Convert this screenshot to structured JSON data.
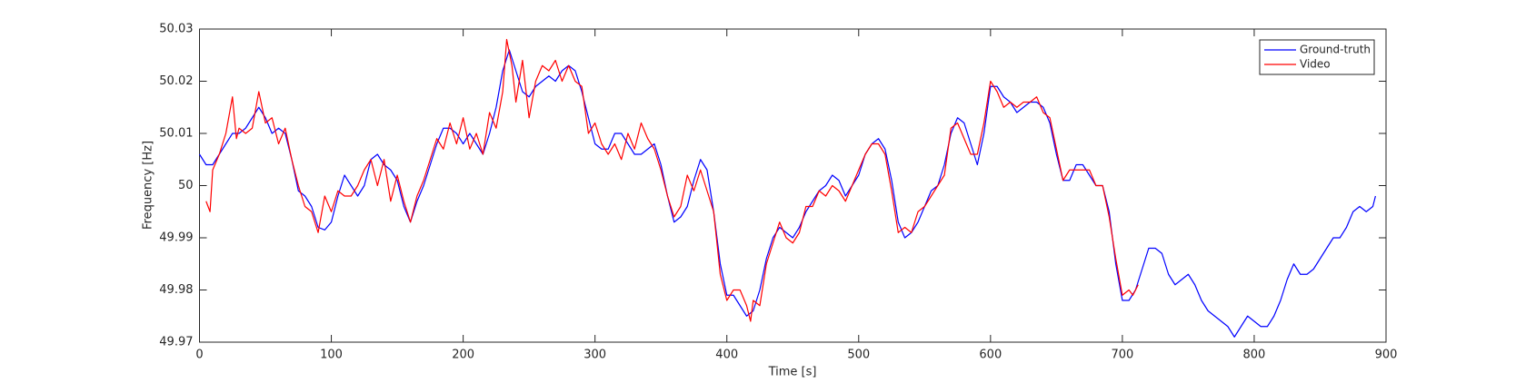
{
  "chart_data": {
    "type": "line",
    "x_label": "Time [s]",
    "y_label": "Frequency [Hz]",
    "xlim": [
      0,
      900
    ],
    "ylim": [
      49.97,
      50.03
    ],
    "xticks": [
      0,
      100,
      200,
      300,
      400,
      500,
      600,
      700,
      800,
      900
    ],
    "yticks": [
      49.97,
      49.98,
      49.99,
      50,
      50.01,
      50.02,
      50.03
    ],
    "legend": "upper right",
    "box": true,
    "series": [
      {
        "name": "Ground-truth",
        "color": "#0000ff",
        "x": [
          0,
          5,
          10,
          15,
          20,
          25,
          30,
          35,
          40,
          45,
          50,
          55,
          60,
          65,
          70,
          75,
          80,
          85,
          90,
          95,
          100,
          105,
          110,
          115,
          120,
          125,
          130,
          135,
          140,
          145,
          150,
          155,
          160,
          165,
          170,
          175,
          180,
          185,
          190,
          195,
          200,
          205,
          210,
          215,
          220,
          225,
          230,
          235,
          240,
          245,
          250,
          255,
          260,
          265,
          270,
          275,
          280,
          285,
          290,
          295,
          300,
          305,
          310,
          315,
          320,
          325,
          330,
          335,
          340,
          345,
          350,
          355,
          360,
          365,
          370,
          375,
          380,
          385,
          390,
          395,
          400,
          405,
          410,
          415,
          420,
          425,
          430,
          435,
          440,
          445,
          450,
          455,
          460,
          465,
          470,
          475,
          480,
          485,
          490,
          495,
          500,
          505,
          510,
          515,
          520,
          525,
          530,
          535,
          540,
          545,
          550,
          555,
          560,
          565,
          570,
          575,
          580,
          585,
          590,
          595,
          600,
          605,
          610,
          615,
          620,
          625,
          630,
          635,
          640,
          645,
          650,
          655,
          660,
          665,
          670,
          675,
          680,
          685,
          690,
          695,
          700,
          705,
          710,
          715,
          720,
          725,
          730,
          735,
          740,
          745,
          750,
          755,
          760,
          765,
          770,
          775,
          780,
          785,
          790,
          795,
          800,
          805,
          810,
          815,
          820,
          825,
          830,
          835,
          840,
          845,
          850,
          855,
          860,
          865,
          870,
          875,
          880,
          885,
          890,
          892
        ],
        "values": [
          50.006,
          50.004,
          50.004,
          50.006,
          50.008,
          50.01,
          50.01,
          50.011,
          50.013,
          50.015,
          50.013,
          50.01,
          50.011,
          50.01,
          50.005,
          49.999,
          49.998,
          49.996,
          49.992,
          49.9915,
          49.993,
          49.998,
          50.002,
          50.0,
          49.998,
          50.0,
          50.005,
          50.006,
          50.004,
          50.003,
          50.001,
          49.996,
          49.993,
          49.997,
          50.0,
          50.004,
          50.008,
          50.011,
          50.011,
          50.01,
          50.008,
          50.01,
          50.008,
          50.006,
          50.01,
          50.015,
          50.022,
          50.026,
          50.022,
          50.018,
          50.017,
          50.019,
          50.02,
          50.021,
          50.02,
          50.022,
          50.023,
          50.022,
          50.018,
          50.013,
          50.008,
          50.007,
          50.007,
          50.01,
          50.01,
          50.008,
          50.006,
          50.006,
          50.007,
          50.008,
          50.004,
          49.998,
          49.993,
          49.994,
          49.996,
          50.001,
          50.005,
          50.003,
          49.995,
          49.985,
          49.979,
          49.979,
          49.977,
          49.975,
          49.976,
          49.98,
          49.986,
          49.99,
          49.992,
          49.991,
          49.99,
          49.992,
          49.995,
          49.997,
          49.999,
          50.0,
          50.002,
          50.001,
          49.998,
          50.0,
          50.002,
          50.006,
          50.008,
          50.009,
          50.007,
          50.001,
          49.993,
          49.99,
          49.991,
          49.993,
          49.996,
          49.999,
          50.0,
          50.004,
          50.01,
          50.013,
          50.012,
          50.008,
          50.004,
          50.01,
          50.019,
          50.019,
          50.017,
          50.016,
          50.014,
          50.015,
          50.016,
          50.016,
          50.015,
          50.012,
          50.006,
          50.001,
          50.001,
          50.004,
          50.004,
          50.002,
          50.0,
          50.0,
          49.995,
          49.985,
          49.978,
          49.978,
          49.98,
          49.984,
          49.988,
          49.988,
          49.987,
          49.983,
          49.981,
          49.982,
          49.983,
          49.981,
          49.978,
          49.976,
          49.975,
          49.974,
          49.973,
          49.971,
          49.973,
          49.975,
          49.974,
          49.973,
          49.973,
          49.975,
          49.978,
          49.982,
          49.985,
          49.983,
          49.983,
          49.984,
          49.986,
          49.988,
          49.99,
          49.99,
          49.992,
          49.995,
          49.996,
          49.995,
          49.996,
          49.998
        ]
      },
      {
        "name": "Video",
        "color": "#ff0000",
        "x": [
          5,
          8,
          10,
          15,
          20,
          25,
          28,
          30,
          35,
          40,
          45,
          50,
          55,
          60,
          65,
          70,
          75,
          80,
          85,
          90,
          95,
          100,
          105,
          110,
          115,
          120,
          125,
          130,
          135,
          140,
          145,
          150,
          155,
          160,
          165,
          170,
          175,
          180,
          185,
          190,
          195,
          200,
          205,
          210,
          215,
          220,
          225,
          230,
          233,
          237,
          240,
          245,
          250,
          255,
          260,
          265,
          270,
          275,
          280,
          285,
          290,
          295,
          300,
          305,
          310,
          315,
          320,
          325,
          330,
          335,
          340,
          345,
          350,
          355,
          360,
          365,
          370,
          375,
          380,
          385,
          390,
          395,
          400,
          405,
          410,
          415,
          418,
          420,
          425,
          430,
          435,
          440,
          445,
          450,
          455,
          460,
          465,
          470,
          475,
          480,
          485,
          490,
          495,
          500,
          505,
          510,
          515,
          520,
          525,
          530,
          535,
          540,
          545,
          550,
          555,
          560,
          565,
          570,
          575,
          580,
          585,
          590,
          595,
          600,
          605,
          610,
          615,
          620,
          625,
          630,
          635,
          640,
          645,
          650,
          655,
          660,
          665,
          670,
          675,
          680,
          685,
          690,
          695,
          700,
          705,
          708,
          712
        ],
        "values": [
          49.997,
          49.995,
          50.003,
          50.006,
          50.01,
          50.017,
          50.009,
          50.011,
          50.01,
          50.011,
          50.018,
          50.012,
          50.013,
          50.008,
          50.011,
          50.005,
          50.0,
          49.996,
          49.995,
          49.991,
          49.998,
          49.995,
          49.999,
          49.998,
          49.998,
          50.0,
          50.003,
          50.005,
          50.0,
          50.005,
          49.997,
          50.002,
          49.997,
          49.993,
          49.998,
          50.001,
          50.005,
          50.009,
          50.007,
          50.012,
          50.008,
          50.013,
          50.007,
          50.01,
          50.006,
          50.014,
          50.011,
          50.018,
          50.028,
          50.023,
          50.016,
          50.024,
          50.013,
          50.02,
          50.023,
          50.022,
          50.024,
          50.02,
          50.023,
          50.02,
          50.019,
          50.01,
          50.012,
          50.008,
          50.006,
          50.008,
          50.005,
          50.01,
          50.007,
          50.012,
          50.009,
          50.007,
          50.003,
          49.998,
          49.994,
          49.996,
          50.002,
          49.999,
          50.003,
          49.999,
          49.995,
          49.983,
          49.978,
          49.98,
          49.98,
          49.977,
          49.974,
          49.978,
          49.977,
          49.985,
          49.989,
          49.993,
          49.99,
          49.989,
          49.991,
          49.996,
          49.996,
          49.999,
          49.998,
          50.0,
          49.999,
          49.997,
          50.0,
          50.003,
          50.006,
          50.008,
          50.008,
          50.006,
          49.999,
          49.991,
          49.992,
          49.991,
          49.995,
          49.996,
          49.998,
          50.0,
          50.002,
          50.011,
          50.012,
          50.009,
          50.006,
          50.006,
          50.012,
          50.02,
          50.018,
          50.015,
          50.016,
          50.015,
          50.016,
          50.016,
          50.017,
          50.014,
          50.013,
          50.007,
          50.001,
          50.003,
          50.003,
          50.003,
          50.003,
          50.0,
          50.0,
          49.994,
          49.986,
          49.979,
          49.98,
          49.979,
          49.981
        ]
      }
    ]
  }
}
